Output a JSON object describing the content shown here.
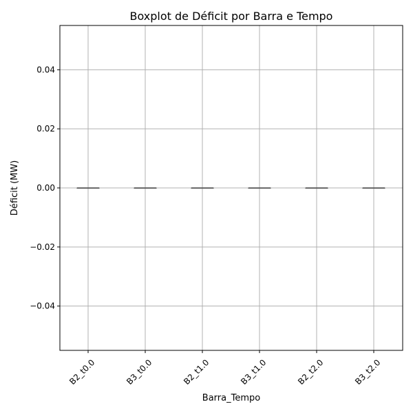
{
  "chart_data": {
    "type": "boxplot",
    "title": "Boxplot de Déficit por Barra e Tempo",
    "xlabel": "Barra_Tempo",
    "ylabel": "Déficit (MW)",
    "categories": [
      "B2_t0.0",
      "B3_t0.0",
      "B2_t1.0",
      "B3_t1.0",
      "B2_t2.0",
      "B3_t2.0"
    ],
    "boxes": [
      {
        "category": "B2_t0.0",
        "min": 0.0,
        "q1": 0.0,
        "median": 0.0,
        "q3": 0.0,
        "max": 0.0
      },
      {
        "category": "B3_t0.0",
        "min": 0.0,
        "q1": 0.0,
        "median": 0.0,
        "q3": 0.0,
        "max": 0.0
      },
      {
        "category": "B2_t1.0",
        "min": 0.0,
        "q1": 0.0,
        "median": 0.0,
        "q3": 0.0,
        "max": 0.0
      },
      {
        "category": "B3_t1.0",
        "min": 0.0,
        "q1": 0.0,
        "median": 0.0,
        "q3": 0.0,
        "max": 0.0
      },
      {
        "category": "B2_t2.0",
        "min": 0.0,
        "q1": 0.0,
        "median": 0.0,
        "q3": 0.0,
        "max": 0.0
      },
      {
        "category": "B3_t2.0",
        "min": 0.0,
        "q1": 0.0,
        "median": 0.0,
        "q3": 0.0,
        "max": 0.0
      }
    ],
    "ylim": [
      -0.055,
      0.055
    ],
    "yticks": [
      -0.04,
      -0.02,
      0.0,
      0.02,
      0.04
    ],
    "ytick_labels": [
      "−0.04",
      "−0.02",
      "0.00",
      "0.02",
      "0.04"
    ],
    "grid": true,
    "xtick_rotation": 45,
    "colors": {
      "grid": "#b0b0b0",
      "box_edge": "#595959",
      "median": "#595959",
      "axis": "#000000"
    }
  }
}
